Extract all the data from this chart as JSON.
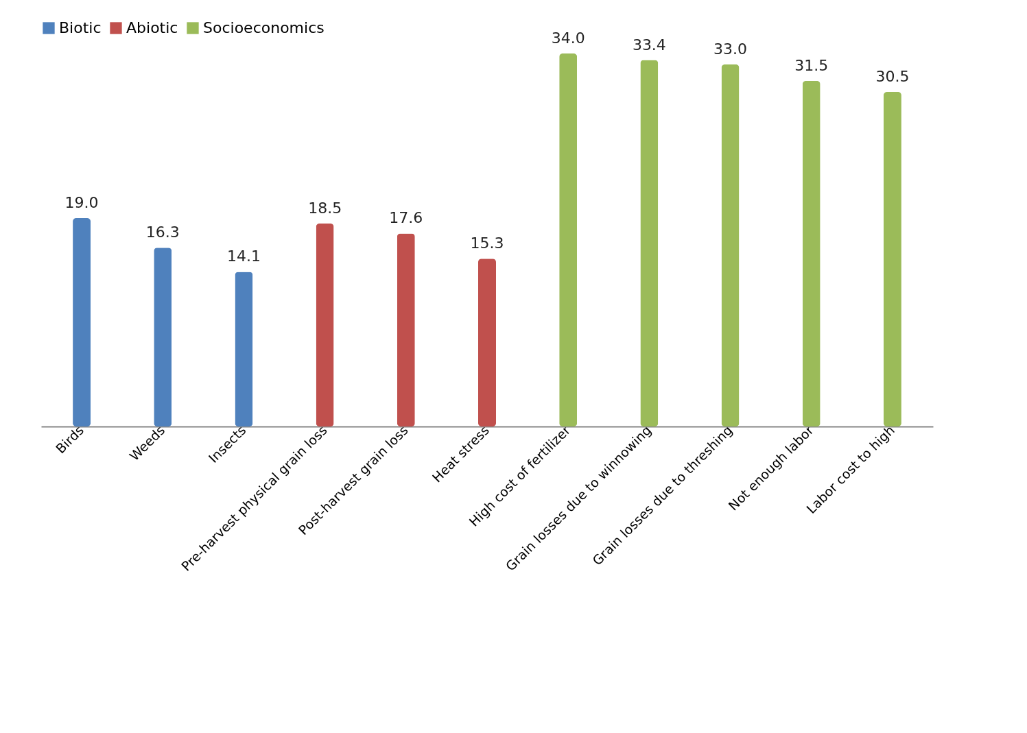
{
  "chart_data": {
    "type": "bar",
    "categories": [
      "Birds",
      "Weeds",
      "Insects",
      "Pre-harvest physical grain loss",
      "Post-harvest grain loss",
      "Heat stress",
      "High cost of fertilizer",
      "Grain losses due to winnowing",
      "Grain losses due to threshing",
      "Not enough labor",
      "Labor cost to high"
    ],
    "series": [
      {
        "name": "Biotic",
        "color": "#4f81bd",
        "values": [
          19.0,
          16.3,
          14.1,
          null,
          null,
          null,
          null,
          null,
          null,
          null,
          null
        ],
        "value_labels": [
          "19.0",
          "16.3",
          "14.1",
          null,
          null,
          null,
          null,
          null,
          null,
          null,
          null
        ]
      },
      {
        "name": "Abiotic",
        "color": "#c0504d",
        "values": [
          null,
          null,
          null,
          18.5,
          17.6,
          15.3,
          null,
          null,
          null,
          null,
          null
        ],
        "value_labels": [
          null,
          null,
          null,
          "18.5",
          "17.6",
          "15.3",
          null,
          null,
          null,
          null,
          null
        ]
      },
      {
        "name": "Socioeconomics",
        "color": "#9bbb59",
        "values": [
          null,
          null,
          null,
          null,
          null,
          null,
          34.0,
          33.4,
          33.0,
          31.5,
          30.5
        ],
        "value_labels": [
          null,
          null,
          null,
          null,
          null,
          null,
          "34.0",
          "33.4",
          "33.0",
          "31.5",
          "30.5"
        ]
      }
    ],
    "legend": "top left"
  }
}
